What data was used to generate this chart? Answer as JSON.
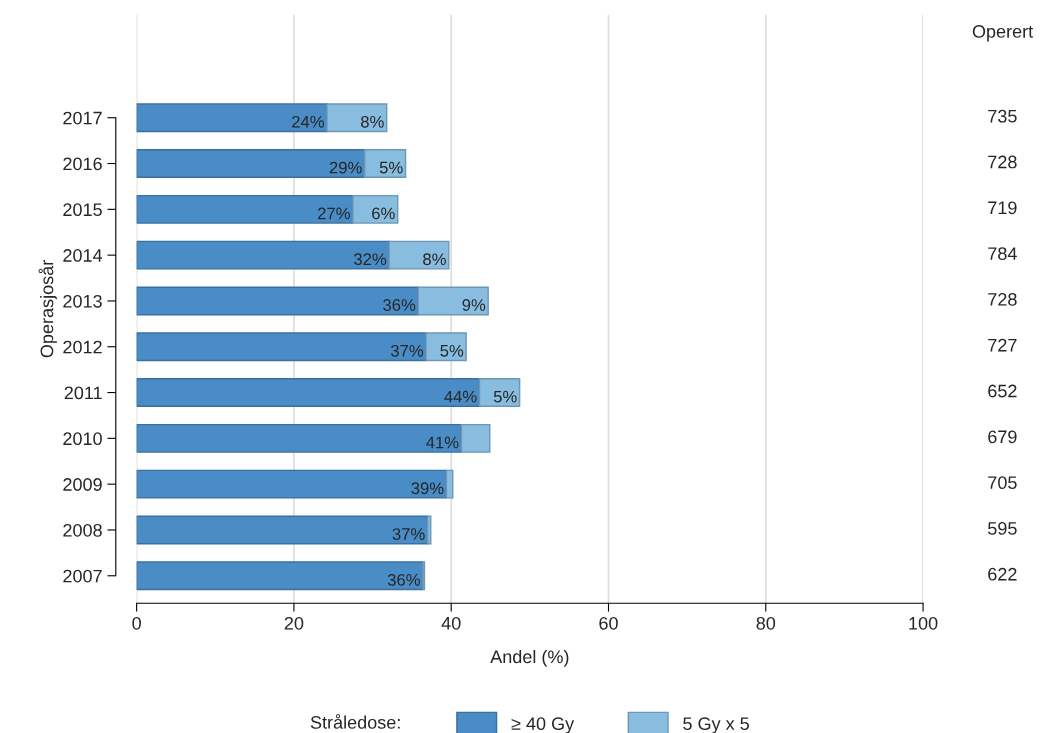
{
  "chart_data": {
    "type": "bar",
    "orientation": "horizontal",
    "stacked": true,
    "xlabel": "Andel (%)",
    "ylabel": "Operasjosår",
    "legend_title": "Stråledose:",
    "legend": "bottom",
    "categories": [
      "2017",
      "2016",
      "2015",
      "2014",
      "2013",
      "2012",
      "2011",
      "2010",
      "2009",
      "2008",
      "2007"
    ],
    "series": [
      {
        "name": "≥ 40 Gy",
        "color": "#4a8cc6",
        "values": [
          24.2,
          29.0,
          27.5,
          32.1,
          35.8,
          36.8,
          43.6,
          41.3,
          39.4,
          37.0,
          36.4
        ],
        "value_labels": [
          "24%",
          "29%",
          "27%",
          "32%",
          "36%",
          "37%",
          "44%",
          "41%",
          "39%",
          "37%",
          "36%"
        ]
      },
      {
        "name": "5 Gy x 5",
        "color": "#88bde0",
        "values": [
          7.6,
          5.2,
          5.7,
          7.6,
          8.9,
          5.1,
          5.1,
          3.6,
          0.8,
          0.4,
          0.2
        ],
        "value_labels": [
          "8%",
          "5%",
          "6%",
          "8%",
          "9%",
          "5%",
          "5%",
          null,
          null,
          null,
          null
        ]
      }
    ],
    "xlim": [
      0,
      100
    ],
    "xticks": [
      0,
      20,
      40,
      60,
      80,
      100
    ],
    "grid": "x",
    "annotations": [
      "Operert",
      "735",
      "728",
      "719",
      "784",
      "728",
      "727",
      "652",
      "679",
      "705",
      "595",
      "622"
    ]
  }
}
